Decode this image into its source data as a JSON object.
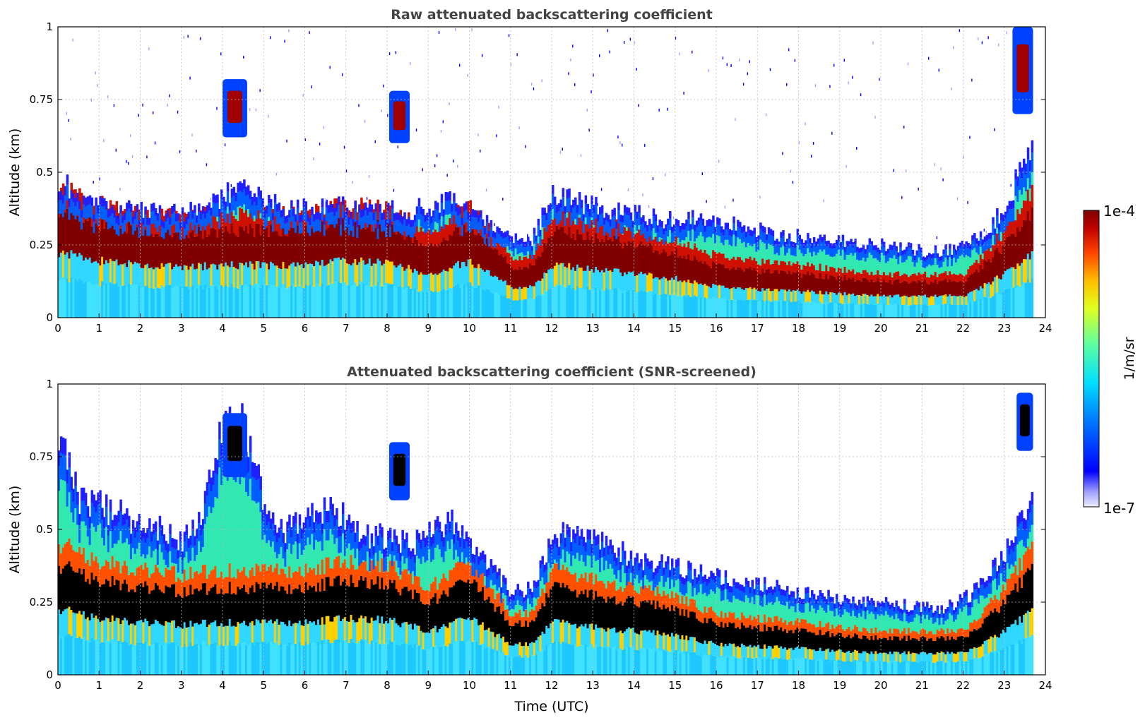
{
  "chart_data": [
    {
      "type": "heatmap",
      "title": "Raw attenuated backscattering coefficient",
      "xlabel": "",
      "ylabel": "Altitude (km)",
      "xlim": [
        0,
        24
      ],
      "ylim": [
        0,
        1
      ],
      "x_ticks": [
        "0",
        "1",
        "2",
        "3",
        "4",
        "5",
        "6",
        "7",
        "8",
        "9",
        "10",
        "11",
        "12",
        "13",
        "14",
        "15",
        "16",
        "17",
        "18",
        "19",
        "20",
        "21",
        "22",
        "23",
        "24"
      ],
      "y_ticks": [
        "0",
        "0.25",
        "0.5",
        "0.75",
        "1"
      ],
      "grid": true,
      "data_end_time": 23.7,
      "layer_top_km": [
        [
          0,
          0.48
        ],
        [
          0.5,
          0.4
        ],
        [
          1,
          0.38
        ],
        [
          1.5,
          0.38
        ],
        [
          2,
          0.37
        ],
        [
          2.5,
          0.36
        ],
        [
          3,
          0.36
        ],
        [
          3.5,
          0.38
        ],
        [
          4,
          0.42
        ],
        [
          4.5,
          0.44
        ],
        [
          5,
          0.4
        ],
        [
          5.5,
          0.38
        ],
        [
          6,
          0.38
        ],
        [
          6.5,
          0.38
        ],
        [
          7,
          0.38
        ],
        [
          7.5,
          0.36
        ],
        [
          8,
          0.37
        ],
        [
          8.5,
          0.37
        ],
        [
          9,
          0.38
        ],
        [
          9.5,
          0.4
        ],
        [
          10,
          0.36
        ],
        [
          10.5,
          0.32
        ],
        [
          11,
          0.27
        ],
        [
          11.5,
          0.27
        ],
        [
          12,
          0.42
        ],
        [
          12.5,
          0.4
        ],
        [
          13,
          0.38
        ],
        [
          13.5,
          0.36
        ],
        [
          14,
          0.36
        ],
        [
          14.5,
          0.34
        ],
        [
          15,
          0.34
        ],
        [
          15.5,
          0.35
        ],
        [
          16,
          0.32
        ],
        [
          16.5,
          0.32
        ],
        [
          17,
          0.3
        ],
        [
          17.5,
          0.29
        ],
        [
          18,
          0.28
        ],
        [
          18.5,
          0.27
        ],
        [
          19,
          0.26
        ],
        [
          19.5,
          0.25
        ],
        [
          20,
          0.25
        ],
        [
          20.5,
          0.24
        ],
        [
          21,
          0.23
        ],
        [
          21.5,
          0.23
        ],
        [
          22,
          0.25
        ],
        [
          22.5,
          0.3
        ],
        [
          23,
          0.38
        ],
        [
          23.5,
          0.55
        ],
        [
          23.7,
          0.6
        ]
      ],
      "layer_core_km": [
        [
          0,
          0.3
        ],
        [
          1,
          0.26
        ],
        [
          2,
          0.24
        ],
        [
          3,
          0.23
        ],
        [
          4,
          0.24
        ],
        [
          5,
          0.24
        ],
        [
          6,
          0.24
        ],
        [
          7,
          0.26
        ],
        [
          8,
          0.25
        ],
        [
          9,
          0.2
        ],
        [
          10,
          0.26
        ],
        [
          10.5,
          0.2
        ],
        [
          11,
          0.14
        ],
        [
          11.5,
          0.14
        ],
        [
          12,
          0.24
        ],
        [
          13,
          0.22
        ],
        [
          14,
          0.2
        ],
        [
          15,
          0.18
        ],
        [
          16,
          0.14
        ],
        [
          17,
          0.13
        ],
        [
          18,
          0.12
        ],
        [
          19,
          0.11
        ],
        [
          20,
          0.1
        ],
        [
          21,
          0.1
        ],
        [
          22,
          0.1
        ],
        [
          23,
          0.2
        ],
        [
          23.7,
          0.3
        ]
      ],
      "features": [
        {
          "x": [
            4.0,
            4.6
          ],
          "y": [
            0.62,
            0.82
          ]
        },
        {
          "x": [
            8.05,
            8.55
          ],
          "y": [
            0.6,
            0.78
          ]
        },
        {
          "x": [
            23.2,
            23.7
          ],
          "y": [
            0.7,
            1.0
          ]
        }
      ]
    },
    {
      "type": "heatmap",
      "title": "Attenuated backscattering coefficient (SNR-screened)",
      "xlabel": "Time (UTC)",
      "ylabel": "Altitude (km)",
      "xlim": [
        0,
        24
      ],
      "ylim": [
        0,
        1
      ],
      "x_ticks": [
        "0",
        "1",
        "2",
        "3",
        "4",
        "5",
        "6",
        "7",
        "8",
        "9",
        "10",
        "11",
        "12",
        "13",
        "14",
        "15",
        "16",
        "17",
        "18",
        "19",
        "20",
        "21",
        "22",
        "23",
        "24"
      ],
      "y_ticks": [
        "0",
        "0.25",
        "0.5",
        "0.75",
        "1"
      ],
      "grid": true,
      "data_end_time": 23.7,
      "layer_top_km": [
        [
          0,
          0.8
        ],
        [
          0.5,
          0.6
        ],
        [
          1,
          0.58
        ],
        [
          1.5,
          0.55
        ],
        [
          2,
          0.52
        ],
        [
          2.5,
          0.5
        ],
        [
          3,
          0.45
        ],
        [
          3.5,
          0.58
        ],
        [
          4,
          0.88
        ],
        [
          4.5,
          0.85
        ],
        [
          5,
          0.6
        ],
        [
          5.5,
          0.5
        ],
        [
          6,
          0.55
        ],
        [
          6.5,
          0.58
        ],
        [
          7,
          0.55
        ],
        [
          7.5,
          0.48
        ],
        [
          8,
          0.47
        ],
        [
          8.5,
          0.45
        ],
        [
          9,
          0.48
        ],
        [
          9.5,
          0.53
        ],
        [
          10,
          0.46
        ],
        [
          10.5,
          0.38
        ],
        [
          11,
          0.28
        ],
        [
          11.5,
          0.3
        ],
        [
          12,
          0.48
        ],
        [
          12.5,
          0.5
        ],
        [
          13,
          0.46
        ],
        [
          13.5,
          0.44
        ],
        [
          14,
          0.4
        ],
        [
          14.5,
          0.38
        ],
        [
          15,
          0.37
        ],
        [
          15.5,
          0.35
        ],
        [
          16,
          0.34
        ],
        [
          16.5,
          0.32
        ],
        [
          17,
          0.32
        ],
        [
          17.5,
          0.3
        ],
        [
          18,
          0.28
        ],
        [
          18.5,
          0.27
        ],
        [
          19,
          0.26
        ],
        [
          19.5,
          0.25
        ],
        [
          20,
          0.25
        ],
        [
          20.5,
          0.24
        ],
        [
          21,
          0.23
        ],
        [
          21.5,
          0.23
        ],
        [
          22,
          0.26
        ],
        [
          22.5,
          0.32
        ],
        [
          23,
          0.42
        ],
        [
          23.5,
          0.58
        ],
        [
          23.7,
          0.58
        ]
      ],
      "layer_core_km": [
        [
          0,
          0.3
        ],
        [
          1,
          0.26
        ],
        [
          2,
          0.24
        ],
        [
          3,
          0.23
        ],
        [
          4,
          0.24
        ],
        [
          5,
          0.24
        ],
        [
          6,
          0.24
        ],
        [
          7,
          0.26
        ],
        [
          8,
          0.25
        ],
        [
          9,
          0.2
        ],
        [
          10,
          0.26
        ],
        [
          10.5,
          0.2
        ],
        [
          11,
          0.14
        ],
        [
          11.5,
          0.14
        ],
        [
          12,
          0.24
        ],
        [
          13,
          0.22
        ],
        [
          14,
          0.2
        ],
        [
          15,
          0.18
        ],
        [
          16,
          0.14
        ],
        [
          17,
          0.13
        ],
        [
          18,
          0.12
        ],
        [
          19,
          0.11
        ],
        [
          20,
          0.1
        ],
        [
          21,
          0.1
        ],
        [
          22,
          0.1
        ],
        [
          23,
          0.2
        ],
        [
          23.7,
          0.3
        ]
      ],
      "features": [
        {
          "x": [
            4.0,
            4.6
          ],
          "y": [
            0.68,
            0.9
          ]
        },
        {
          "x": [
            8.05,
            8.55
          ],
          "y": [
            0.6,
            0.8
          ]
        },
        {
          "x": [
            23.3,
            23.7
          ],
          "y": [
            0.77,
            0.97
          ]
        }
      ]
    }
  ],
  "colorbar": {
    "label": "1/m/sr",
    "max_label": "1e-4",
    "min_label": "1e-7",
    "colormap": "jet",
    "scale": "log"
  },
  "colors": {
    "black_core": "#000000",
    "dark_red": "#800000",
    "low_blue": "#e8e8ff"
  }
}
